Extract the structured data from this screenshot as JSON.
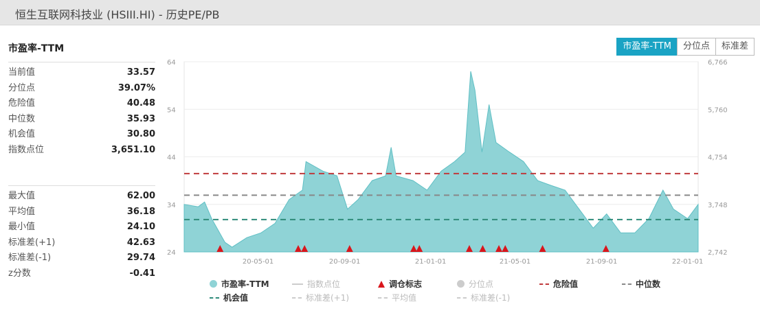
{
  "window_title": "恒生互联网科技业 (HSIII.HI) - 历史PE/PB",
  "section_title": "市盈率-TTM",
  "toggle_buttons": [
    {
      "label": "市盈率-TTM",
      "active": true
    },
    {
      "label": "分位点",
      "active": false
    },
    {
      "label": "标准差",
      "active": false
    }
  ],
  "stats_top": [
    {
      "label": "当前值",
      "value": "33.57"
    },
    {
      "label": "分位点",
      "value": "39.07%"
    },
    {
      "label": "危险值",
      "value": "40.48"
    },
    {
      "label": "中位数",
      "value": "35.93"
    },
    {
      "label": "机会值",
      "value": "30.80"
    },
    {
      "label": "指数点位",
      "value": "3,651.10"
    }
  ],
  "stats_bottom": [
    {
      "label": "最大值",
      "value": "62.00"
    },
    {
      "label": "平均值",
      "value": "36.18"
    },
    {
      "label": "最小值",
      "value": "24.10"
    },
    {
      "label": "标准差(+1)",
      "value": "42.63"
    },
    {
      "label": "标准差(-1)",
      "value": "29.74"
    },
    {
      "label": "z分数",
      "value": "-0.41"
    }
  ],
  "colors": {
    "area": "#8fd3d6",
    "area_line": "#5fbfc4",
    "danger": "#c0393b",
    "median": "#888888",
    "opportunity": "#2e8b7a",
    "marker": "#d9161c",
    "accent": "#1aa3c4"
  },
  "chart_data": {
    "type": "area",
    "x_range": [
      "2020-01-17",
      "2022-01-16"
    ],
    "ylim": [
      24,
      64
    ],
    "y_ticks": [
      "64",
      "54",
      "44",
      "34",
      "24"
    ],
    "y2_ticks": [
      "6,766",
      "5,760",
      "4,754",
      "3,748",
      "2,742"
    ],
    "x_ticks": [
      {
        "date": "2020-05-01",
        "label": "20-05-01"
      },
      {
        "date": "2020-09-01",
        "label": "20-09-01"
      },
      {
        "date": "2021-01-01",
        "label": "21-01-01"
      },
      {
        "date": "2021-05-01",
        "label": "21-05-01"
      },
      {
        "date": "2021-09-01",
        "label": "21-09-01"
      },
      {
        "date": "2022-01-01",
        "label": "22-01-01"
      }
    ],
    "grid": true,
    "series": [
      {
        "name": "市盈率-TTM",
        "points": [
          [
            "2020-01-17",
            34
          ],
          [
            "2020-02-06",
            33.5
          ],
          [
            "2020-02-15",
            34.5
          ],
          [
            "2020-02-25",
            31
          ],
          [
            "2020-03-15",
            26
          ],
          [
            "2020-03-25",
            25
          ],
          [
            "2020-04-15",
            27
          ],
          [
            "2020-05-05",
            28
          ],
          [
            "2020-05-25",
            30
          ],
          [
            "2020-06-14",
            35
          ],
          [
            "2020-07-03",
            37
          ],
          [
            "2020-07-08",
            43
          ],
          [
            "2020-08-01",
            41
          ],
          [
            "2020-08-21",
            40
          ],
          [
            "2020-09-05",
            33
          ],
          [
            "2020-09-20",
            35
          ],
          [
            "2020-10-10",
            39
          ],
          [
            "2020-10-29",
            40
          ],
          [
            "2020-11-06",
            46
          ],
          [
            "2020-11-13",
            40
          ],
          [
            "2020-12-07",
            39
          ],
          [
            "2020-12-27",
            37
          ],
          [
            "2021-01-16",
            41
          ],
          [
            "2021-02-04",
            43
          ],
          [
            "2021-02-19",
            45
          ],
          [
            "2021-02-27",
            62
          ],
          [
            "2021-03-05",
            58
          ],
          [
            "2021-03-15",
            45
          ],
          [
            "2021-03-25",
            55
          ],
          [
            "2021-04-04",
            47
          ],
          [
            "2021-04-23",
            45
          ],
          [
            "2021-05-13",
            43
          ],
          [
            "2021-06-02",
            39
          ],
          [
            "2021-06-21",
            38
          ],
          [
            "2021-07-11",
            37
          ],
          [
            "2021-07-31",
            33
          ],
          [
            "2021-08-20",
            29
          ],
          [
            "2021-09-08",
            32
          ],
          [
            "2021-09-28",
            28
          ],
          [
            "2021-10-18",
            28
          ],
          [
            "2021-11-07",
            31
          ],
          [
            "2021-11-27",
            37
          ],
          [
            "2021-12-12",
            33
          ],
          [
            "2022-01-01",
            31
          ],
          [
            "2022-01-16",
            34
          ]
        ]
      }
    ],
    "reference_lines": [
      {
        "name": "危险值",
        "value": 40.48
      },
      {
        "name": "中位数",
        "value": 35.93
      },
      {
        "name": "机会值",
        "value": 30.8
      }
    ],
    "rebalance_markers": [
      "2020-03-08",
      "2020-06-27",
      "2020-07-06",
      "2020-09-08",
      "2020-12-08",
      "2020-12-16",
      "2021-02-25",
      "2021-03-16",
      "2021-04-08",
      "2021-04-17",
      "2021-06-09",
      "2021-09-07"
    ],
    "legend": [
      {
        "name": "市盈率-TTM",
        "enabled": true,
        "symbol": "circle"
      },
      {
        "name": "指数点位",
        "enabled": false,
        "symbol": "line"
      },
      {
        "name": "调仓标志",
        "enabled": true,
        "symbol": "triangle"
      },
      {
        "name": "分位点",
        "enabled": false,
        "symbol": "circle"
      },
      {
        "name": "危险值",
        "enabled": true,
        "symbol": "dash"
      },
      {
        "name": "中位数",
        "enabled": true,
        "symbol": "dash"
      },
      {
        "name": "机会值",
        "enabled": true,
        "symbol": "dash"
      },
      {
        "name": "标准差(+1)",
        "enabled": false,
        "symbol": "dash"
      },
      {
        "name": "平均值",
        "enabled": false,
        "symbol": "dash"
      },
      {
        "name": "标准差(-1)",
        "enabled": false,
        "symbol": "dash"
      }
    ],
    "legend_position": "bottom"
  }
}
